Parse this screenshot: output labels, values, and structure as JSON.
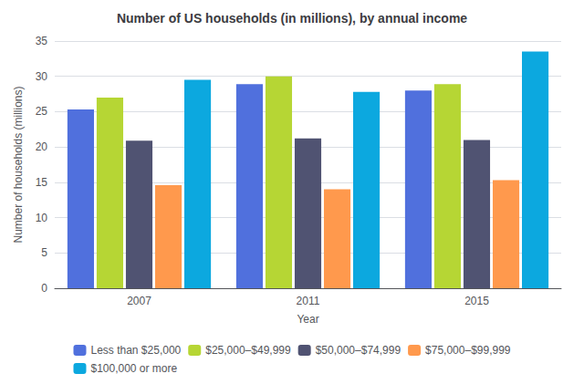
{
  "chart_data": {
    "type": "bar",
    "title": "Number of US households (in millions), by annual income",
    "x_label": "Year",
    "y_label": "Number of households (millions)",
    "categories": [
      "2007",
      "2011",
      "2015"
    ],
    "series": [
      {
        "name": "Less than $25,000",
        "values": [
          25.3,
          28.9,
          28.0
        ]
      },
      {
        "name": "$25,000–$49,999",
        "values": [
          27.0,
          30.0,
          28.9
        ]
      },
      {
        "name": "$50,000–$74,999",
        "values": [
          20.9,
          21.2,
          21.0
        ]
      },
      {
        "name": "$75,000–$99,999",
        "values": [
          14.6,
          14.0,
          15.3
        ]
      },
      {
        "name": "$100,000 or more",
        "values": [
          29.5,
          27.8,
          33.5
        ]
      }
    ],
    "ylim": [
      0,
      35
    ],
    "yticks": [
      0,
      5,
      10,
      15,
      20,
      25,
      30,
      35
    ],
    "grid": true,
    "legend": "bottom"
  }
}
